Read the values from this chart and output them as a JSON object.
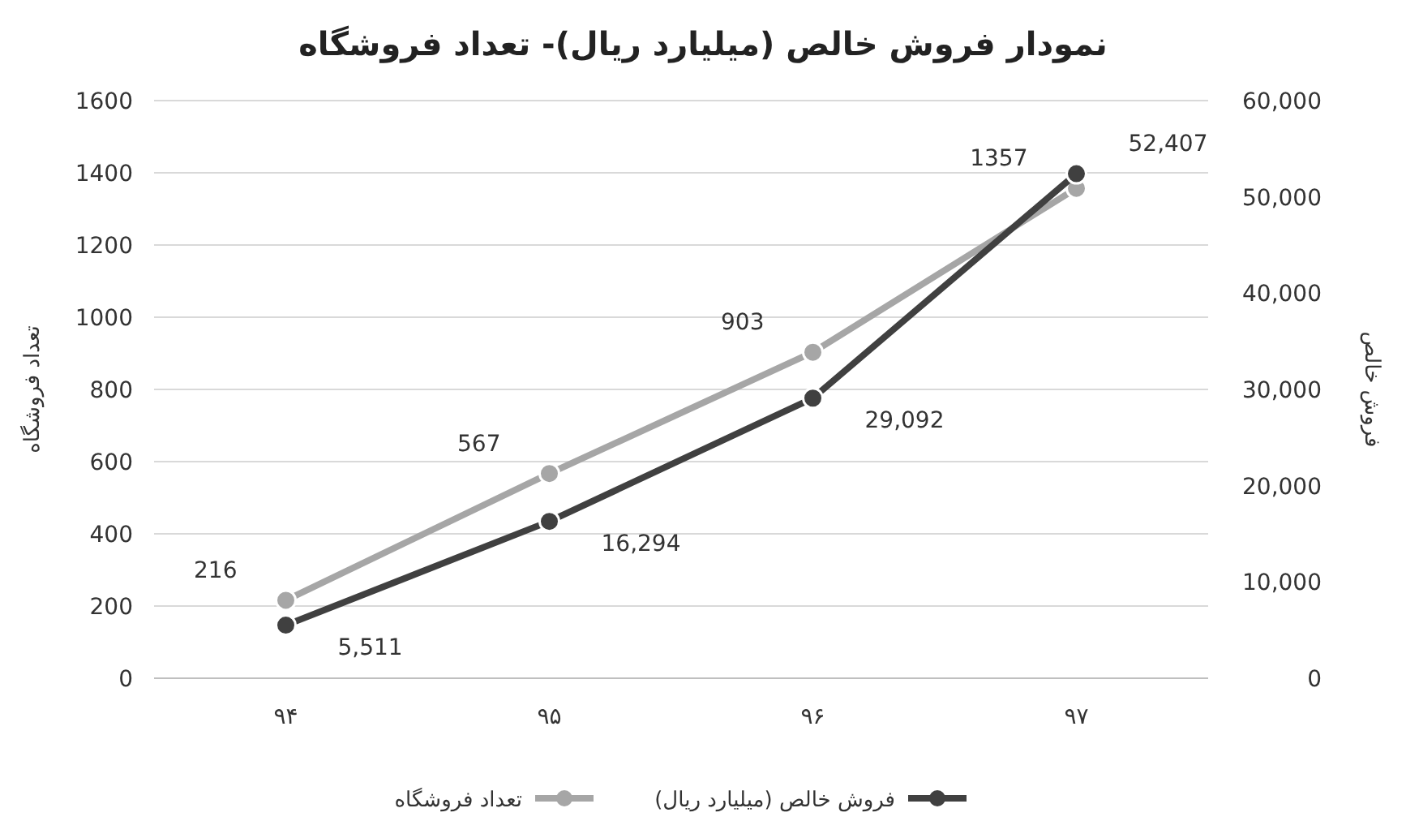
{
  "chart_data": {
    "type": "line",
    "title": "نمودار فروش خالص (میلیارد ریال)- تعداد  فروشگاه",
    "ylabel": "تعداد فروشگاه",
    "y2label": "فروش خالص",
    "categories": [
      "۹۴",
      "۹۵",
      "۹۶",
      "۹۷"
    ],
    "series": [
      {
        "name": "تعداد  فروشگاه",
        "color": "#a6a6a6",
        "values": [
          216,
          567,
          903,
          1357
        ],
        "value_labels": [
          "216",
          "567",
          "903",
          "1357"
        ]
      },
      {
        "name": "فروش خالص (میلیارد ریال)",
        "color": "#404040",
        "axis": "y2",
        "values": [
          5511,
          16294,
          29092,
          52407
        ],
        "value_labels": [
          "5,511",
          "16,294",
          "29,092",
          "52,407"
        ]
      }
    ],
    "ylim": [
      0,
      1600
    ],
    "yticks": [
      0,
      200,
      400,
      600,
      800,
      1000,
      1200,
      1400,
      1600
    ],
    "y2lim": [
      0,
      60000
    ],
    "y2ticks": [
      {
        "value": 0,
        "label": "0"
      },
      {
        "value": 10000,
        "label": "10,000"
      },
      {
        "value": 20000,
        "label": "20,000"
      },
      {
        "value": 30000,
        "label": "30,000"
      },
      {
        "value": 40000,
        "label": "40,000"
      },
      {
        "value": 50000,
        "label": "50,000"
      },
      {
        "value": 60000,
        "label": "60,000"
      }
    ],
    "grid": "y",
    "legend": "bottom",
    "marker": "circle",
    "line_style": "solid"
  }
}
